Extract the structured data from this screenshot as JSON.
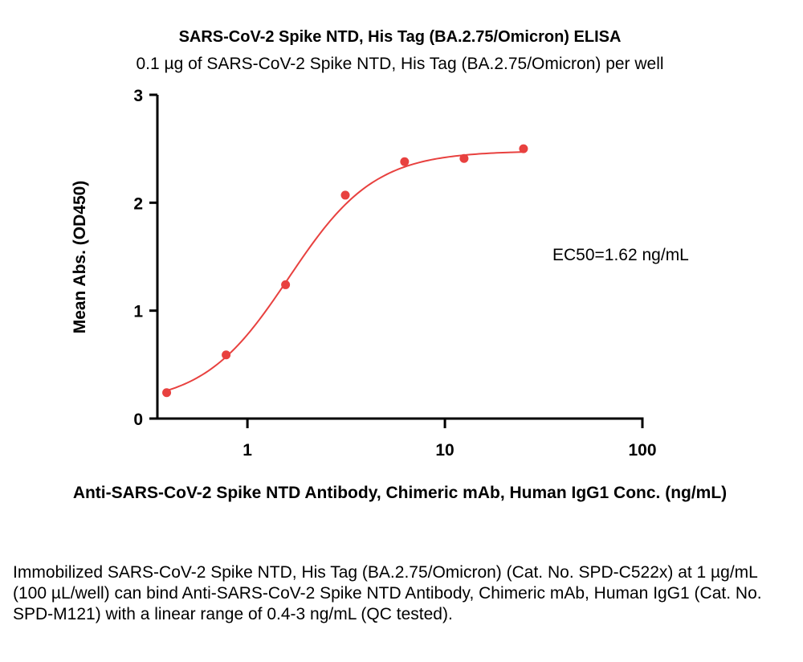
{
  "chart_data": {
    "type": "scatter",
    "title": "SARS-CoV-2 Spike NTD, His Tag (BA.2.75/Omicron) ELISA",
    "subtitle": "0.1 µg of SARS-CoV-2 Spike NTD, His Tag (BA.2.75/Omicron) per well",
    "xlabel": "Anti-SARS-CoV-2 Spike NTD Antibody, Chimeric mAb, Human IgG1 Conc. (ng/mL)",
    "ylabel": "Mean Abs. (OD450)",
    "x_scale": "log",
    "xlim": [
      0.35,
      100
    ],
    "ylim": [
      0,
      3
    ],
    "x_ticks": [
      1,
      10,
      100
    ],
    "x_tick_labels": [
      "1",
      "10",
      "100"
    ],
    "y_ticks": [
      0,
      1,
      2,
      3
    ],
    "y_tick_labels": [
      "0",
      "1",
      "2",
      "3"
    ],
    "grid": false,
    "series": [
      {
        "color": "#e8413f",
        "points": [
          {
            "x": 0.39,
            "y": 0.24
          },
          {
            "x": 0.78,
            "y": 0.59
          },
          {
            "x": 1.56,
            "y": 1.24
          },
          {
            "x": 3.13,
            "y": 2.07
          },
          {
            "x": 6.25,
            "y": 2.38
          },
          {
            "x": 12.5,
            "y": 2.41
          },
          {
            "x": 25,
            "y": 2.5
          }
        ],
        "fit": {
          "model": "4PL",
          "bottom": 0.13,
          "top": 2.48,
          "ec50": 1.62,
          "hill": 2.0,
          "x_range": [
            0.39,
            25
          ]
        }
      }
    ],
    "annotations": [
      "EC50=1.62 ng/mL"
    ]
  },
  "caption": "Immobilized SARS-CoV-2 Spike NTD, His Tag (BA.2.75/Omicron) (Cat. No. SPD-C522x) at 1 µg/mL (100 µL/well) can bind Anti-SARS-CoV-2 Spike NTD Antibody, Chimeric mAb, Human IgG1 (Cat. No. SPD-M121) with a linear range of 0.4-3 ng/mL (QC tested)."
}
